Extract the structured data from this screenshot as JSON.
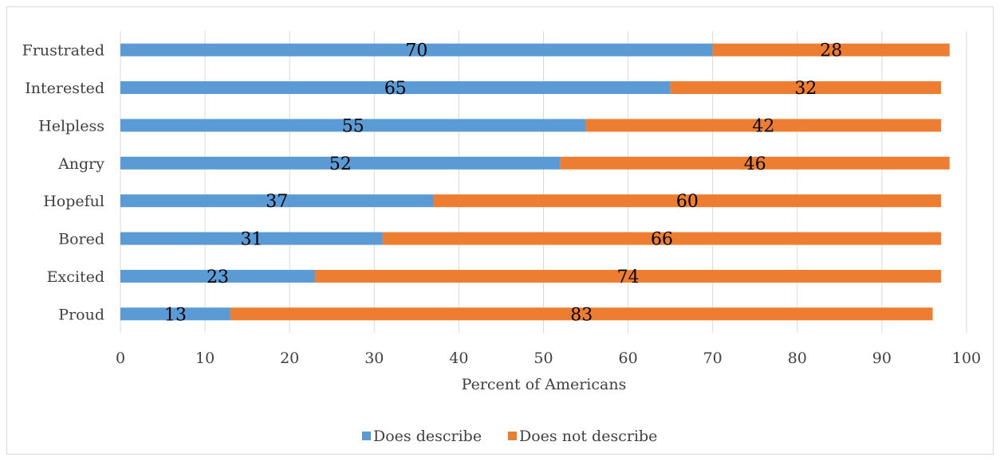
{
  "chart_data": {
    "type": "bar",
    "orientation": "horizontal",
    "stacked": true,
    "categories": [
      "Frustrated",
      "Interested",
      "Helpless",
      "Angry",
      "Hopeful",
      "Bored",
      "Excited",
      "Proud"
    ],
    "series": [
      {
        "name": "Does describe",
        "values": [
          70,
          65,
          55,
          52,
          37,
          31,
          23,
          13
        ]
      },
      {
        "name": "Does not describe",
        "values": [
          28,
          32,
          42,
          46,
          60,
          66,
          74,
          83
        ]
      }
    ],
    "xlabel": "Percent of Americans",
    "ylabel": "",
    "xlim": [
      0,
      100
    ],
    "xticks": [
      "0",
      "10",
      "20",
      "30",
      "40",
      "50",
      "60",
      "70",
      "80",
      "90",
      "100"
    ],
    "grid": "vertical",
    "legend_position": "bottom",
    "data_labels": true,
    "colors": {
      "Does describe": "#5b9bd5",
      "Does not describe": "#ed7d31",
      "grid": "#d9d9d9",
      "frame": "#d9d9d9"
    }
  }
}
